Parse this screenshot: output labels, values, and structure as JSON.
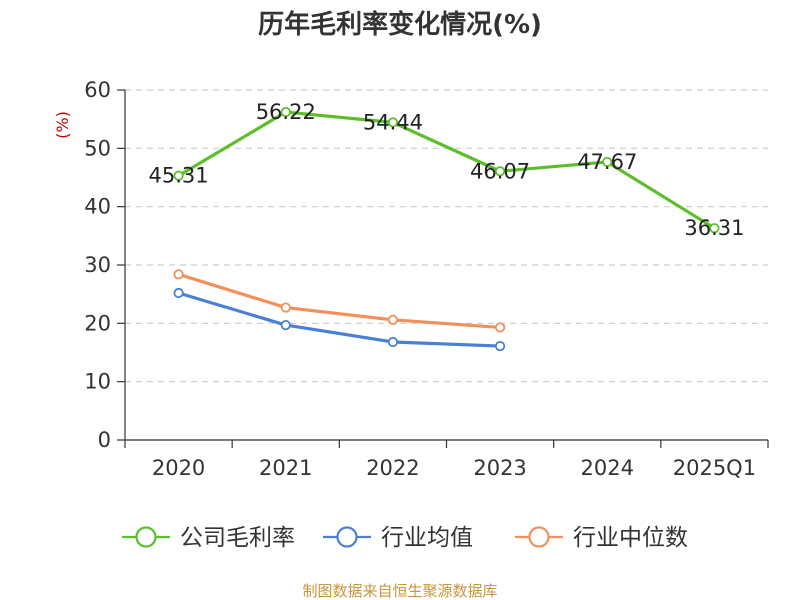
{
  "title": "历年毛利率变化情况(%)",
  "footer": "制图数据来自恒生聚源数据库",
  "chart_data": {
    "type": "line",
    "title": "历年毛利率变化情况(%)",
    "ylabel": "(%)",
    "xlabel": "",
    "categories": [
      "2020",
      "2021",
      "2022",
      "2023",
      "2024",
      "2025Q1"
    ],
    "ylim": [
      0,
      60
    ],
    "yticks": [
      0,
      10,
      20,
      30,
      40,
      50,
      60
    ],
    "grid": "horizontal-dashed",
    "legend_position": "bottom",
    "series": [
      {
        "name": "公司毛利率",
        "color": "#5cbf2a",
        "values": [
          45.31,
          56.22,
          54.44,
          46.07,
          47.67,
          36.31
        ],
        "labels": [
          "45.31",
          "56.22",
          "54.44",
          "46.07",
          "47.67",
          "36.31"
        ],
        "show_labels": true
      },
      {
        "name": "行业均值",
        "color": "#4a7fd4",
        "values": [
          25.2,
          19.7,
          16.8,
          16.1,
          null,
          null
        ],
        "show_labels": false
      },
      {
        "name": "行业中位数",
        "color": "#f0905a",
        "values": [
          28.4,
          22.7,
          20.6,
          19.3,
          null,
          null
        ],
        "show_labels": false
      }
    ]
  }
}
